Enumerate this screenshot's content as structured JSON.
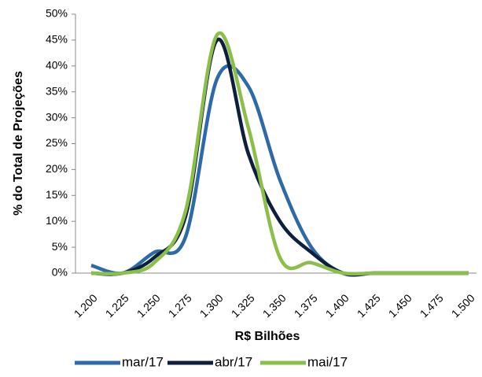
{
  "chart_data": {
    "type": "line",
    "x_label": "R$ Bilhões",
    "y_label": "% do Total de Projeções",
    "categories": [
      "1.200",
      "1.225",
      "1.250",
      "1.275",
      "1.300",
      "1.325",
      "1.350",
      "1.375",
      "1.400",
      "1.425",
      "1.450",
      "1.475",
      "1.500"
    ],
    "series": [
      {
        "name": "mar/17",
        "color": "#2e6aa8",
        "values": [
          1.5,
          0,
          4,
          7,
          37.5,
          36,
          18,
          5,
          0,
          0,
          0,
          0,
          0
        ]
      },
      {
        "name": "abr/17",
        "color": "#0d1f3c",
        "values": [
          0,
          0,
          3,
          11,
          45,
          23,
          10,
          4,
          0,
          0,
          0,
          0,
          0
        ]
      },
      {
        "name": "mai/17",
        "color": "#8cbf4a",
        "values": [
          0,
          0,
          2,
          12,
          46,
          28,
          3,
          2,
          0,
          0,
          0,
          0,
          0
        ]
      }
    ],
    "ylim": [
      0,
      50
    ],
    "yticks": [
      {
        "value": 0,
        "label": "0%"
      },
      {
        "value": 5,
        "label": "5%"
      },
      {
        "value": 10,
        "label": "10%"
      },
      {
        "value": 15,
        "label": "15%"
      },
      {
        "value": 20,
        "label": "20%"
      },
      {
        "value": 25,
        "label": "25%"
      },
      {
        "value": 30,
        "label": "30%"
      },
      {
        "value": 35,
        "label": "35%"
      },
      {
        "value": 40,
        "label": "40%"
      },
      {
        "value": 45,
        "label": "45%"
      },
      {
        "value": 50,
        "label": "50%"
      }
    ],
    "grid": false,
    "legend": "bottom"
  }
}
